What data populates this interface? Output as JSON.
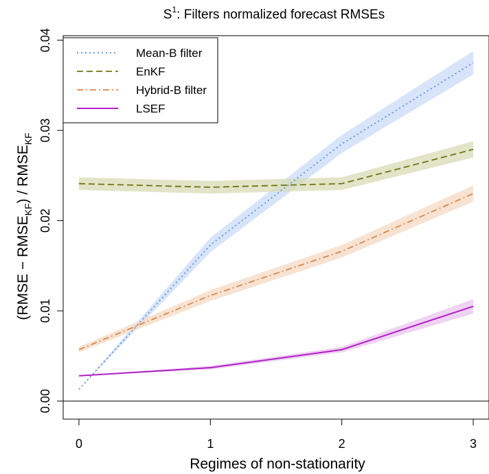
{
  "chart_data": {
    "type": "line",
    "title": "S",
    "title_superscript": "1",
    "title_rest": ":  Filters normalized forecast RMSEs",
    "xlabel": "Regimes of non-stationarity",
    "ylabel": {
      "part1": "(RMSE − RMSE",
      "part1_sub": "KF",
      "part2": ")   /   RMSE",
      "part2_sub": "KF"
    },
    "x": [
      0,
      1,
      2,
      3
    ],
    "x_ticks": [
      "0",
      "1",
      "2",
      "3"
    ],
    "y_ticks": [
      "0.00",
      "0.01",
      "0.02",
      "0.03",
      "0.04"
    ],
    "xlim": [
      -0.12,
      3.12
    ],
    "ylim": [
      -0.002,
      0.0405
    ],
    "reference_line_y": 0,
    "legend_position": "top-left",
    "series": [
      {
        "name": "Mean-B filter",
        "color": "#5b8ee6",
        "band_color": "#c9dbf7",
        "style": "dotted",
        "values": [
          0.0013,
          0.0173,
          0.0285,
          0.0375
        ],
        "band_half_width": [
          0.0,
          0.0008,
          0.001,
          0.0013
        ]
      },
      {
        "name": "EnKF",
        "color": "#6e7410",
        "band_color": "#d8dbb4",
        "style": "dashed",
        "values": [
          0.0241,
          0.0237,
          0.0241,
          0.0279
        ],
        "band_half_width": [
          0.0007,
          0.0007,
          0.0007,
          0.0009
        ]
      },
      {
        "name": "Hybrid-B filter",
        "color": "#d9884a",
        "band_color": "#f5d9c3",
        "style": "dashdot",
        "values": [
          0.0057,
          0.0117,
          0.0166,
          0.023
        ],
        "band_half_width": [
          0.0003,
          0.0006,
          0.0007,
          0.0009
        ]
      },
      {
        "name": "LSEF",
        "color": "#b21ec8",
        "band_color": "#e8c4ee",
        "style": "solid",
        "values": [
          0.0028,
          0.0037,
          0.0057,
          0.0105
        ],
        "band_half_width": [
          0.0,
          0.0002,
          0.0003,
          0.0008
        ]
      }
    ]
  }
}
